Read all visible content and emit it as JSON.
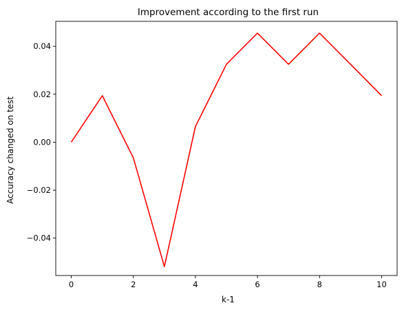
{
  "chart_data": {
    "type": "line",
    "title": "Improvement according to the first run",
    "xlabel": "k-1",
    "ylabel": "Accuracy changed on test",
    "xlim": [
      -0.5,
      10.5
    ],
    "ylim": [
      -0.0556,
      0.0504
    ],
    "x_ticks": [
      0,
      2,
      4,
      6,
      8,
      10
    ],
    "y_ticks": [
      0.04,
      0.02,
      0.0,
      -0.02,
      -0.04
    ],
    "y_tick_labels": [
      "0.04",
      "0.02",
      "0.00",
      "−0.02",
      "−0.04"
    ],
    "x_tick_labels": [
      "0",
      "2",
      "4",
      "6",
      "8",
      "10"
    ],
    "grid": false,
    "series": [
      {
        "color": "#ff0000",
        "x": [
          0,
          1,
          2,
          3,
          4,
          5,
          6,
          7,
          8,
          9,
          10
        ],
        "y": [
          0.0,
          0.0194,
          -0.0065,
          -0.0519,
          0.0065,
          0.0325,
          0.0455,
          0.0325,
          0.0455,
          0.0325,
          0.0194
        ]
      }
    ]
  }
}
